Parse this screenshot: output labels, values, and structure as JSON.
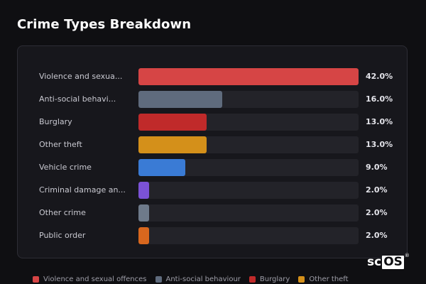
{
  "chart_data": {
    "type": "bar",
    "orientation": "horizontal",
    "title": "Crime Types Breakdown",
    "categories": [
      "Violence and sexua...",
      "Anti-social behavi...",
      "Burglary",
      "Other theft",
      "Vehicle crime",
      "Criminal damage an...",
      "Other crime",
      "Public order"
    ],
    "values": [
      42.0,
      16.0,
      13.0,
      13.0,
      9.0,
      2.0,
      2.0,
      2.0
    ],
    "value_labels": [
      "42.0%",
      "16.0%",
      "13.0%",
      "13.0%",
      "9.0%",
      "2.0%",
      "2.0%",
      "2.0%"
    ],
    "colors": [
      "#d64545",
      "#5f6b7d",
      "#c02a2a",
      "#d4901a",
      "#3a7bd5",
      "#7b52d6",
      "#6e7a8a",
      "#d8671e"
    ],
    "value_max": 42.0,
    "legend": {
      "placement": "bottom",
      "items": [
        {
          "label": "Violence and sexual offences",
          "color": "#d64545"
        },
        {
          "label": "Anti-social behaviour",
          "color": "#5f6b7d"
        },
        {
          "label": "Burglary",
          "color": "#c02a2a"
        },
        {
          "label": "Other theft",
          "color": "#d4901a"
        }
      ]
    }
  },
  "logo": {
    "prefix": "sc",
    "boxed": "OS",
    "mark": "®"
  }
}
